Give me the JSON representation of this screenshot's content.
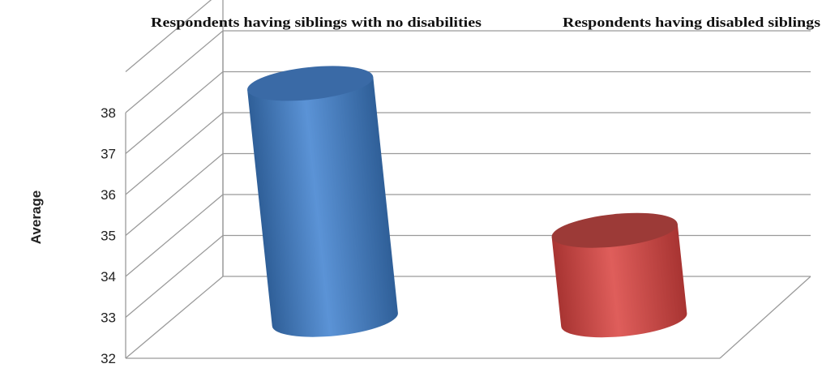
{
  "chart_data": {
    "type": "bar",
    "title": "",
    "xlabel": "",
    "ylabel": "Average",
    "ylim": [
      32,
      38
    ],
    "yticks": [
      "32",
      "33",
      "34",
      "35",
      "36",
      "37",
      "38"
    ],
    "grid": true,
    "categories": [
      "Respondents having siblings with no disabilities",
      "Respondents having disabled siblings"
    ],
    "values": [
      37.8,
      34.2
    ],
    "colors": [
      "#4f86c6",
      "#d04d4a"
    ]
  }
}
